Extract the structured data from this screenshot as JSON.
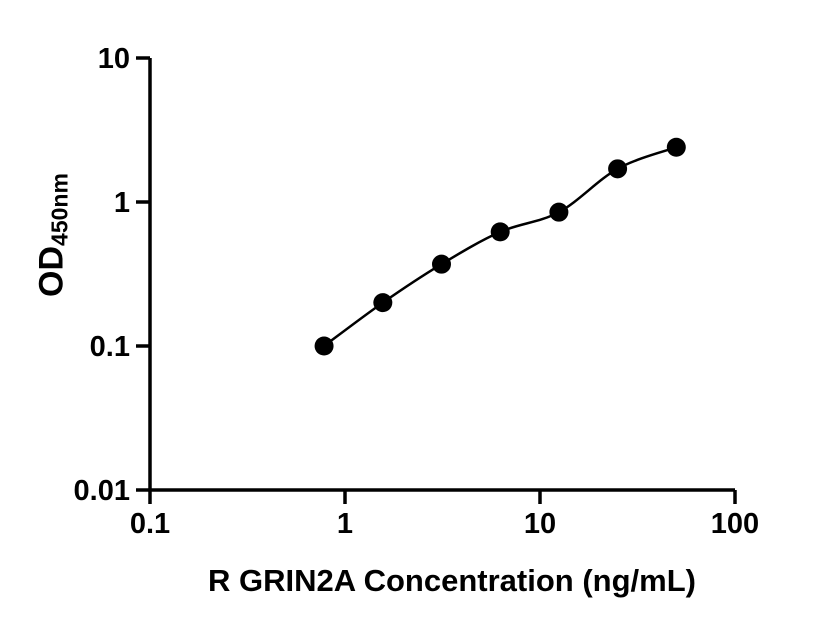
{
  "chart_data": {
    "type": "scatter",
    "x": [
      0.781,
      1.563,
      3.125,
      6.25,
      12.5,
      25,
      50
    ],
    "y": [
      0.1,
      0.2,
      0.37,
      0.62,
      0.85,
      1.7,
      2.4
    ],
    "line": "smooth",
    "marker": "filled-circle",
    "marker_color": "#000000",
    "line_color": "#000000",
    "axis_color": "#000000",
    "background": "#ffffff",
    "xlabel": "R GRIN2A Concentration (ng/mL)",
    "ylabel": "OD",
    "ylabel_subscript": "450nm",
    "xscale": "log",
    "yscale": "log",
    "xlim": [
      0.1,
      100
    ],
    "ylim": [
      0.01,
      10
    ],
    "x_tick_values": [
      0.1,
      1,
      10,
      100
    ],
    "x_tick_labels": [
      "0.1",
      "1",
      "10",
      "100"
    ],
    "y_tick_values": [
      0.01,
      0.1,
      1,
      10
    ],
    "y_tick_labels": [
      "0.01",
      "0.1",
      "1",
      "10"
    ],
    "grid": false,
    "legend": false
  }
}
